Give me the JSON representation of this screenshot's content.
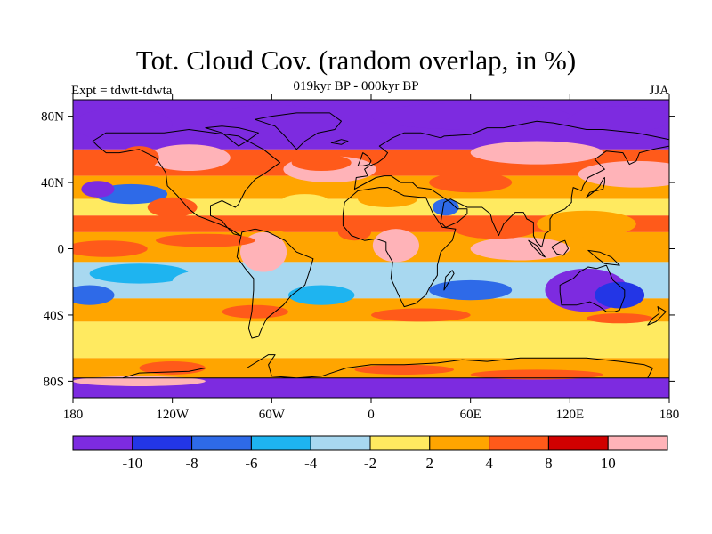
{
  "title": "Tot. Cloud Cov. (random overlap, in %)",
  "subtitle": "019kyr BP - 000kyr BP",
  "left_string": "Expt = tdwtt-tdwta",
  "right_string": "JJA",
  "palette": {
    "pos_3": "#ffb3b8",
    "pos_2": "#ff5a1a",
    "pos_1": "#ffa500",
    "pos_0": "#ffea60",
    "neg_1": "#a8d8f0",
    "neg_2": "#1eb4f0",
    "neg_3": "#2e6ae8",
    "neg_4": "#2336e6",
    "neg_5": "#7d2be0",
    "coast": "#000000"
  },
  "chart_data": {
    "type": "heatmap",
    "projection": "cylindrical-equidistant",
    "lon_range": [
      -180,
      180
    ],
    "lat_range": [
      -90,
      90
    ],
    "x_ticks": [
      {
        "value": -180,
        "label": "180"
      },
      {
        "value": -120,
        "label": "120W"
      },
      {
        "value": -60,
        "label": "60W"
      },
      {
        "value": 0,
        "label": "0"
      },
      {
        "value": 60,
        "label": "60E"
      },
      {
        "value": 120,
        "label": "120E"
      },
      {
        "value": 180,
        "label": "180"
      }
    ],
    "y_ticks": [
      {
        "value": 80,
        "label": "80N"
      },
      {
        "value": 40,
        "label": "40N"
      },
      {
        "value": 0,
        "label": "0"
      },
      {
        "value": -40,
        "label": "40S"
      },
      {
        "value": -80,
        "label": "80S"
      }
    ],
    "colorbar": {
      "levels": [
        "-10",
        "-8",
        "-6",
        "-4",
        "-2",
        "2",
        "4",
        "8",
        "10"
      ],
      "colors": [
        "#7d2be0",
        "#2336e6",
        "#2e6ae8",
        "#1eb4f0",
        "#a8d8f0",
        "#ffea60",
        "#ffa500",
        "#ff5a1a",
        "#d10000",
        "#ffb3b8"
      ]
    }
  }
}
